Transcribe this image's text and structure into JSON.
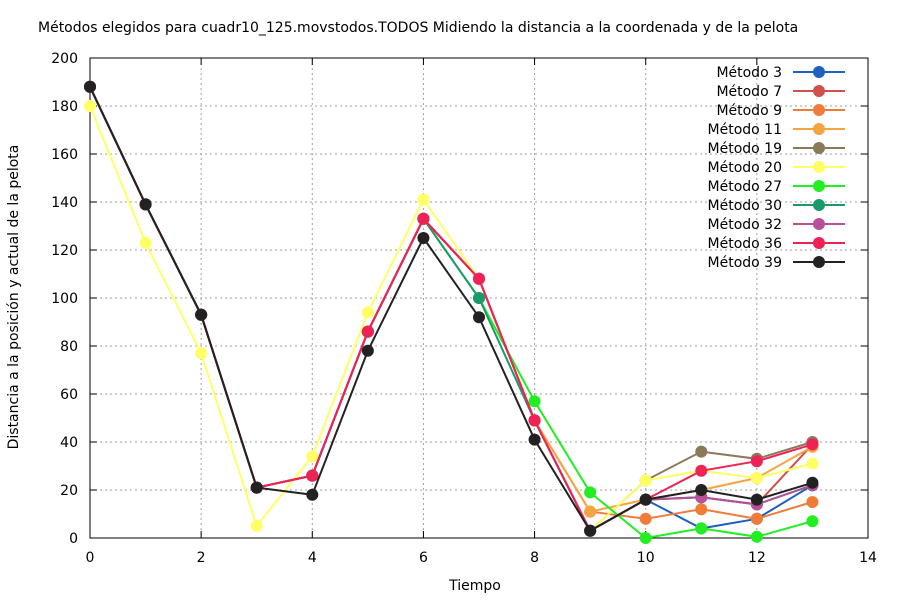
{
  "chart_data": {
    "type": "line",
    "title": "Métodos elegidos para cuadr10_125.movstodos.TODOS Midiendo la distancia a la coordenada y de la pelota",
    "xlabel": "Tiempo",
    "ylabel": "Distancia a la posición y actual de la pelota",
    "xlim": [
      0,
      14
    ],
    "ylim": [
      0,
      200
    ],
    "xticks": [
      0,
      2,
      4,
      6,
      8,
      10,
      12,
      14
    ],
    "yticks": [
      0,
      20,
      40,
      60,
      80,
      100,
      120,
      140,
      160,
      180,
      200
    ],
    "grid": true,
    "legend_position": "top-right",
    "x": [
      0,
      1,
      2,
      3,
      4,
      5,
      6,
      7,
      8,
      9,
      10,
      11,
      12,
      13
    ],
    "series": [
      {
        "name": "Método 3",
        "color": "#1f5fbf",
        "values": [
          188,
          139,
          93,
          21,
          26,
          86,
          133,
          108,
          49,
          3,
          16,
          4,
          8,
          22
        ]
      },
      {
        "name": "Método 7",
        "color": "#d0504a",
        "values": [
          188,
          139,
          93,
          21,
          26,
          86,
          133,
          108,
          49,
          3,
          16,
          17,
          14,
          39
        ]
      },
      {
        "name": "Método 9",
        "color": "#f07c3a",
        "values": [
          188,
          139,
          93,
          21,
          26,
          86,
          133,
          108,
          49,
          11,
          8,
          12,
          8,
          15
        ]
      },
      {
        "name": "Método 11",
        "color": "#f5a442",
        "values": [
          188,
          139,
          93,
          21,
          26,
          86,
          133,
          108,
          49,
          11,
          16,
          20,
          25,
          38
        ]
      },
      {
        "name": "Método 19",
        "color": "#8a7a5a",
        "values": [
          188,
          139,
          93,
          21,
          26,
          86,
          133,
          108,
          49,
          3,
          24,
          36,
          33,
          40
        ]
      },
      {
        "name": "Método 20",
        "color": "#ffff66",
        "values": [
          180,
          123,
          77,
          5,
          34,
          94,
          141,
          108,
          49,
          3,
          24,
          28,
          25,
          31
        ]
      },
      {
        "name": "Método 27",
        "color": "#22ee22",
        "values": [
          188,
          139,
          93,
          21,
          26,
          86,
          133,
          100,
          57,
          19,
          0,
          4,
          0.5,
          7
        ]
      },
      {
        "name": "Método 30",
        "color": "#1a9a6a",
        "values": [
          188,
          139,
          93,
          21,
          26,
          86,
          133,
          100,
          49,
          3,
          16,
          17,
          14,
          22
        ]
      },
      {
        "name": "Método 32",
        "color": "#b84f9a",
        "values": [
          188,
          139,
          93,
          21,
          26,
          86,
          133,
          108,
          49,
          3,
          16,
          17,
          14,
          22
        ]
      },
      {
        "name": "Método 36",
        "color": "#ee2255",
        "values": [
          188,
          139,
          93,
          21,
          26,
          86,
          133,
          108,
          49,
          3,
          16,
          28,
          32,
          39
        ]
      },
      {
        "name": "Método 39",
        "color": "#222222",
        "values": [
          188,
          139,
          93,
          21,
          18,
          78,
          125,
          92,
          41,
          3,
          16,
          20,
          16,
          23
        ]
      }
    ]
  }
}
